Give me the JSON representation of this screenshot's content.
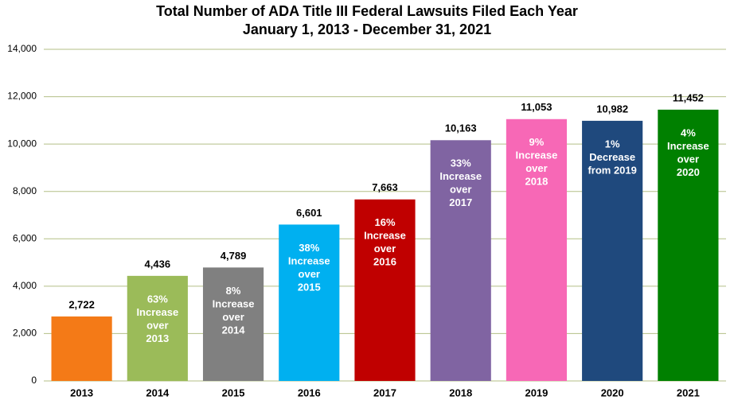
{
  "chart_data": {
    "type": "bar",
    "title": "Total Number of ADA Title III Federal Lawsuits Filed Each Year",
    "subtitle": "January 1, 2013 - December 31, 2021",
    "categories": [
      "2013",
      "2014",
      "2015",
      "2016",
      "2017",
      "2018",
      "2019",
      "2020",
      "2021"
    ],
    "values": [
      2722,
      4436,
      4789,
      6601,
      7663,
      10163,
      11053,
      10982,
      11452
    ],
    "value_labels": [
      "2,722",
      "4,436",
      "4,789",
      "6,601",
      "7,663",
      "10,163",
      "11,053",
      "10,982",
      "11,452"
    ],
    "colors": [
      "#f47a17",
      "#9bbb59",
      "#808080",
      "#00b0f0",
      "#c00000",
      "#8064a2",
      "#f768b6",
      "#1f497d",
      "#008000"
    ],
    "annotations": [
      null,
      [
        "63%",
        "Increase",
        "over",
        "2013"
      ],
      [
        "8%",
        "Increase",
        "over",
        "2014"
      ],
      [
        "38%",
        "Increase",
        "over",
        "2015"
      ],
      [
        "16%",
        "Increase",
        "over",
        "2016"
      ],
      [
        "33%",
        "Increase",
        "over",
        "2017"
      ],
      [
        "9%",
        "Increase",
        "over",
        "2018"
      ],
      [
        "1%",
        "Decrease",
        "from 2019"
      ],
      [
        "4%",
        "Increase",
        "over",
        "2020"
      ]
    ],
    "ylim": [
      0,
      14000
    ],
    "yticks": [
      0,
      {
        "value": 2000,
        "label": "2,000"
      },
      {
        "value": 4000,
        "label": "4,000"
      },
      {
        "value": 6000,
        "label": "6,000"
      },
      {
        "value": 8000,
        "label": "8,000"
      },
      {
        "value": 10000,
        "label": "10,000"
      },
      {
        "value": 12000,
        "label": "12,000"
      },
      {
        "value": 14000,
        "label": "14,000"
      }
    ],
    "grid": true
  }
}
